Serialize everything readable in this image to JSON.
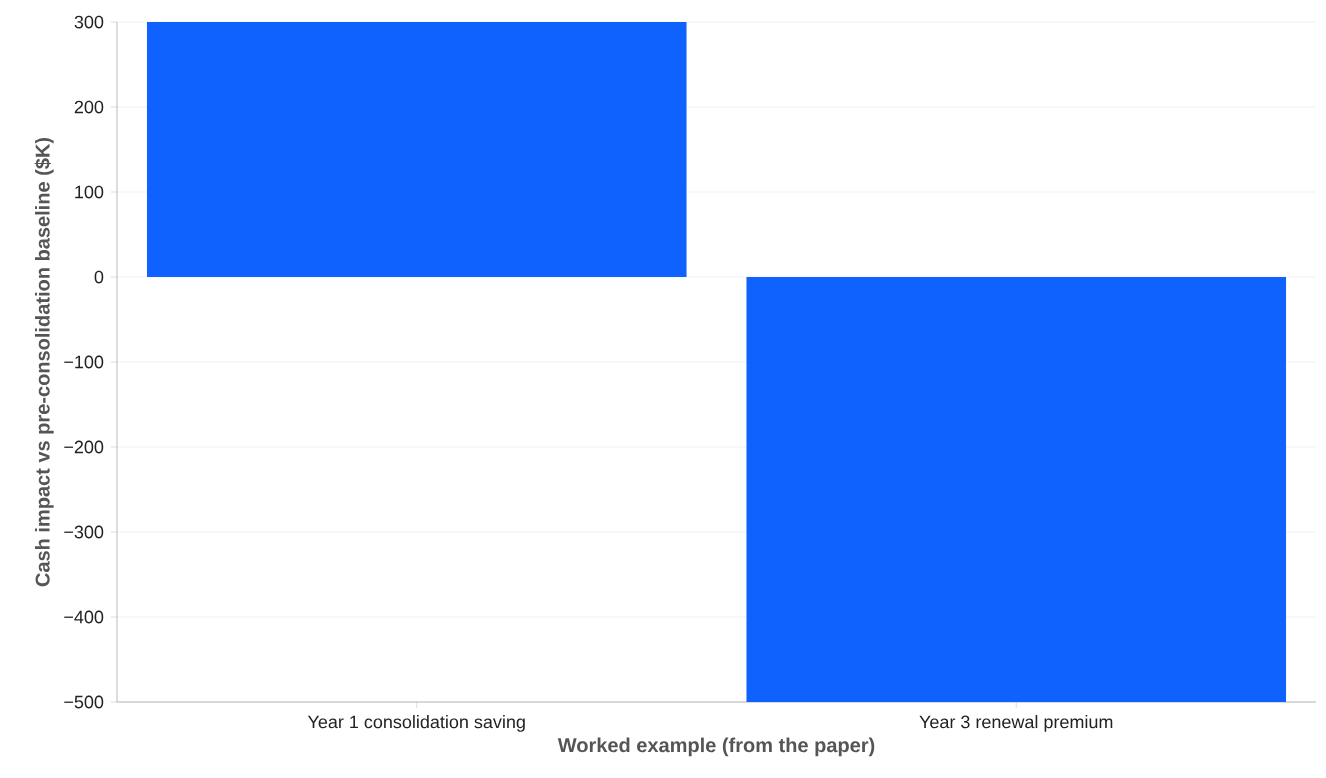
{
  "chart_data": {
    "type": "bar",
    "xlabel": "Worked example (from the paper)",
    "ylabel": "Cash impact vs pre-consolidation baseline ($K)",
    "categories": [
      "Year 1 consolidation saving",
      "Year 3 renewal premium"
    ],
    "values": [
      300,
      -500
    ],
    "color": "#1062fe",
    "ylim": [
      -500,
      300
    ],
    "yticks": [
      {
        "value": -500,
        "label": "−500"
      },
      {
        "value": -400,
        "label": "−400"
      },
      {
        "value": -300,
        "label": "−300"
      },
      {
        "value": -200,
        "label": "−200"
      },
      {
        "value": -100,
        "label": "−100"
      },
      0,
      100,
      200,
      300
    ],
    "grid": "y"
  }
}
